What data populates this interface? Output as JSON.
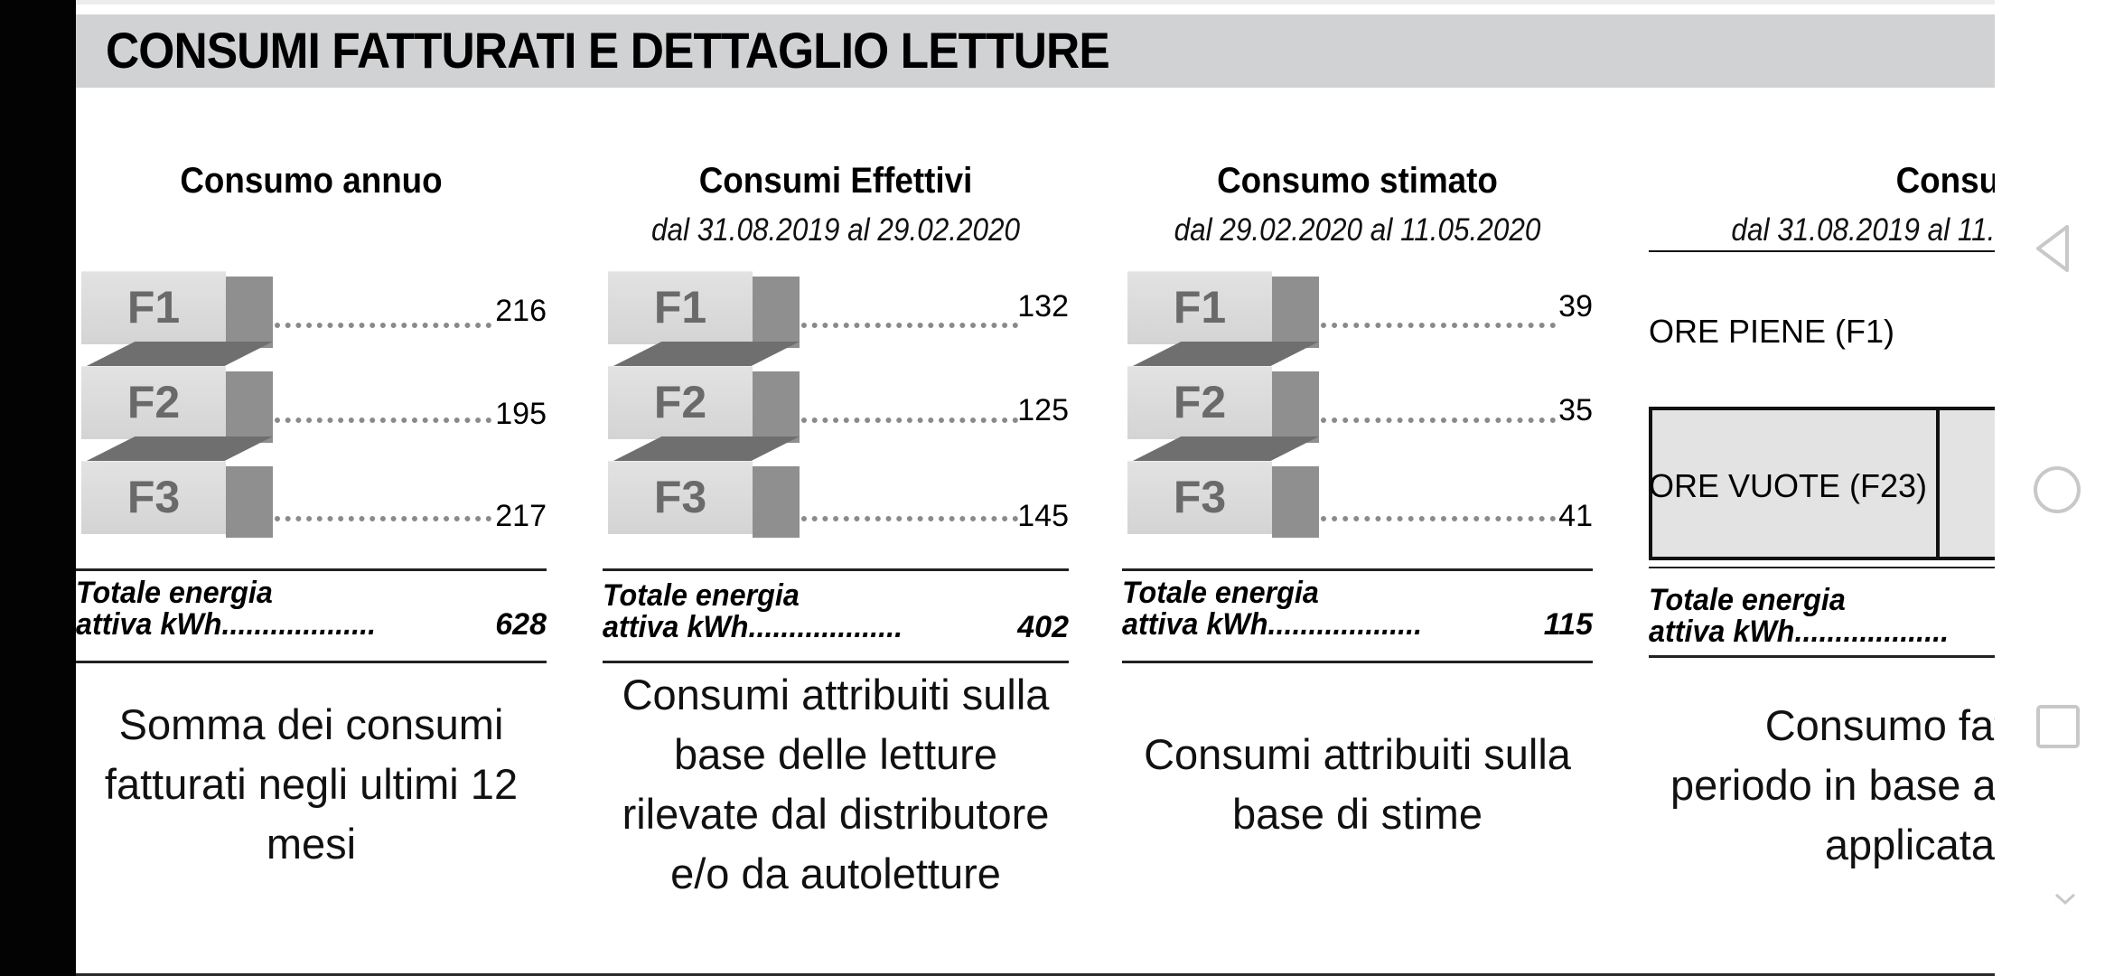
{
  "header": {
    "title": "CONSUMI FATTURATI E DETTAGLIO LETTURE"
  },
  "columns": [
    {
      "title": "Consumo annuo",
      "date": "",
      "bands": [
        {
          "label": "F1",
          "value": "216"
        },
        {
          "label": "F2",
          "value": "195"
        },
        {
          "label": "F3",
          "value": "217"
        }
      ],
      "total_line1": "Totale energia",
      "total_line2": "attiva kWh...................",
      "total_value": "628",
      "description": [
        "Somma dei consumi",
        "fatturati negli ultimi 12",
        "mesi"
      ]
    },
    {
      "title": "Consumi Effettivi",
      "date": "dal 31.08.2019 al 29.02.2020",
      "bands": [
        {
          "label": "F1",
          "value": "132"
        },
        {
          "label": "F2",
          "value": "125"
        },
        {
          "label": "F3",
          "value": "145"
        }
      ],
      "total_line1": "Totale energia",
      "total_line2": "attiva kWh...................",
      "total_value": "402",
      "description": [
        "Consumi attribuiti sulla",
        "base delle letture",
        "rilevate dal distributore",
        "e/o da autoletture"
      ]
    },
    {
      "title": "Consumo stimato",
      "date": "dal 29.02.2020 al 11.05.2020",
      "bands": [
        {
          "label": "F1",
          "value": "39"
        },
        {
          "label": "F2",
          "value": "35"
        },
        {
          "label": "F3",
          "value": "41"
        }
      ],
      "total_line1": "Totale energia",
      "total_line2": "attiva kWh...................",
      "total_value": "115",
      "description": [
        "Consumi attribuiti sulla",
        "base di stime"
      ]
    },
    {
      "title": "Consumo fattu",
      "date": "dal 31.08.2019 al 11.",
      "time_bands": [
        {
          "label": "ORE PIENE (F1)"
        },
        {
          "label": "ORE VUOTE (F23)"
        }
      ],
      "total_line1": "Totale energia",
      "total_line2": "attiva kWh...................",
      "description": [
        "Consumo fattur",
        "periodo in base al",
        "applicata"
      ]
    }
  ],
  "nav": {
    "back": "back-icon",
    "home": "home-icon",
    "recents": "recents-icon",
    "expand": "chevron-down-icon"
  },
  "colors": {
    "header_bg": "#d1d2d4",
    "block_front": "#dadada",
    "block_side": "#8f8f90",
    "f23_box": "#e3e3e3"
  }
}
